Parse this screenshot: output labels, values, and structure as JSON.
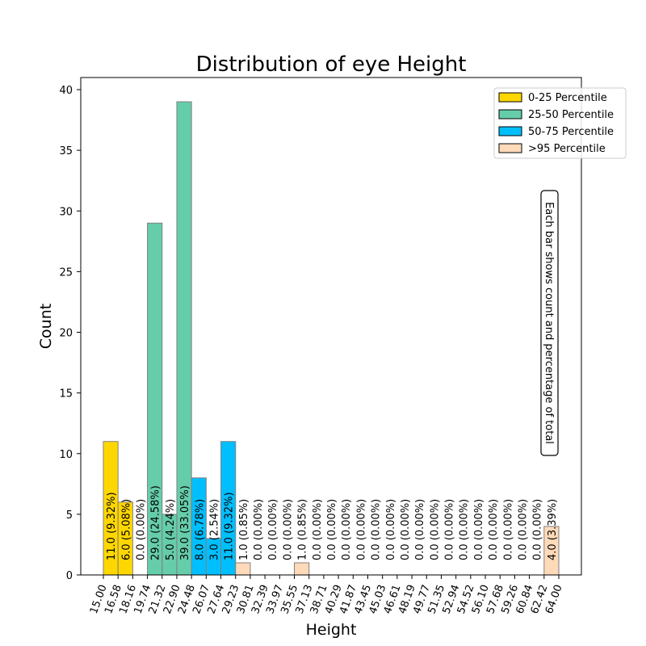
{
  "chart_data": {
    "type": "bar",
    "title": "Distribution of eye Height",
    "xlabel": "Height",
    "ylabel": "Count",
    "bin_edges": [
      "15.00",
      "16.58",
      "18.16",
      "19.74",
      "21.32",
      "22.90",
      "24.48",
      "26.07",
      "27.64",
      "29.23",
      "30.81",
      "32.39",
      "33.97",
      "35.55",
      "37.13",
      "38.71",
      "40.29",
      "41.87",
      "43.45",
      "45.03",
      "46.61",
      "48.19",
      "49.77",
      "51.35",
      "52.94",
      "54.52",
      "56.10",
      "57.68",
      "59.26",
      "60.84",
      "62.42",
      "64.00"
    ],
    "bins": [
      {
        "count": 11,
        "label": "11.0  (9.32%)",
        "group": 0
      },
      {
        "count": 6,
        "label": "6.0  (5.08%)",
        "group": 0
      },
      {
        "count": 0,
        "label": "0.0  (0.00%)",
        "group": 0
      },
      {
        "count": 29,
        "label": "29.0  (24.58%)",
        "group": 1
      },
      {
        "count": 5,
        "label": "5.0  (4.24%)",
        "group": 1
      },
      {
        "count": 39,
        "label": "39.0  (33.05%)",
        "group": 1
      },
      {
        "count": 8,
        "label": "8.0  (6.78%)",
        "group": 2
      },
      {
        "count": 3,
        "label": "3.0  (2.54%)",
        "group": 2
      },
      {
        "count": 11,
        "label": "11.0  (9.32%)",
        "group": 2
      },
      {
        "count": 1,
        "label": "1.0  (0.85%)",
        "group": 3
      },
      {
        "count": 0,
        "label": "0.0  (0.00%)",
        "group": 3
      },
      {
        "count": 0,
        "label": "0.0  (0.00%)",
        "group": 3
      },
      {
        "count": 0,
        "label": "0.0  (0.00%)",
        "group": 3
      },
      {
        "count": 1,
        "label": "1.0  (0.85%)",
        "group": 3
      },
      {
        "count": 0,
        "label": "0.0  (0.00%)",
        "group": 3
      },
      {
        "count": 0,
        "label": "0.0  (0.00%)",
        "group": 3
      },
      {
        "count": 0,
        "label": "0.0  (0.00%)",
        "group": 3
      },
      {
        "count": 0,
        "label": "0.0  (0.00%)",
        "group": 3
      },
      {
        "count": 0,
        "label": "0.0  (0.00%)",
        "group": 3
      },
      {
        "count": 0,
        "label": "0.0  (0.00%)",
        "group": 3
      },
      {
        "count": 0,
        "label": "0.0  (0.00%)",
        "group": 3
      },
      {
        "count": 0,
        "label": "0.0  (0.00%)",
        "group": 3
      },
      {
        "count": 0,
        "label": "0.0  (0.00%)",
        "group": 3
      },
      {
        "count": 0,
        "label": "0.0  (0.00%)",
        "group": 3
      },
      {
        "count": 0,
        "label": "0.0  (0.00%)",
        "group": 3
      },
      {
        "count": 0,
        "label": "0.0  (0.00%)",
        "group": 3
      },
      {
        "count": 0,
        "label": "0.0  (0.00%)",
        "group": 3
      },
      {
        "count": 0,
        "label": "0.0  (0.00%)",
        "group": 3
      },
      {
        "count": 0,
        "label": "0.0  (0.00%)",
        "group": 3
      },
      {
        "count": 0,
        "label": "0.0  (0.00%)",
        "group": 3
      },
      {
        "count": 4,
        "label": "4.0  (3.39%)",
        "group": 3
      }
    ],
    "legend": [
      {
        "name": "0-25 Percentile",
        "color": "#ffd700"
      },
      {
        "name": "25-50 Percentile",
        "color": "#66cdaa"
      },
      {
        "name": "50-75 Percentile",
        "color": "#00bfff"
      },
      {
        "name": ">95 Percentile",
        "color": "#ffdab9"
      }
    ],
    "legend_position": "top-right",
    "annotation": "Each bar shows count and percentage of total",
    "ylim": [
      0,
      41
    ],
    "yticks": [
      0,
      5,
      10,
      15,
      20,
      25,
      30,
      35,
      40
    ],
    "grid": false,
    "bar_edge_color": "#808080"
  }
}
